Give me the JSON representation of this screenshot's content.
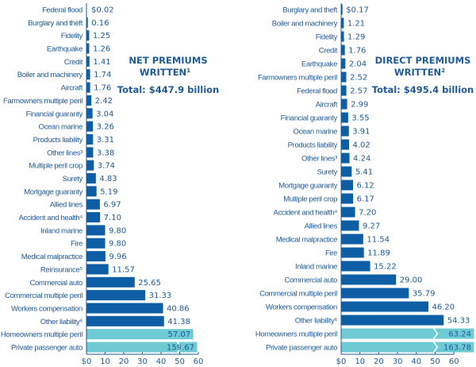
{
  "colors": {
    "bar_primary": "#0d5ea5",
    "bar_highlight": "#6ecbd3",
    "text": "#1f5a99",
    "axis": "#1f5a99"
  },
  "chart_data": [
    {
      "type": "bar",
      "orientation": "horizontal",
      "title": "NET PREMIUMS WRITTEN",
      "title_line1": "NET PREMIUMS",
      "title_line2": "WRITTEN",
      "title_footnote": "1",
      "total_label": "Total: $447.9 billion",
      "xlabel": "",
      "ylabel": "",
      "xlim": [
        0,
        60
      ],
      "x_ticks": [
        "$0",
        "10",
        "20",
        "30",
        "40",
        "50",
        "60"
      ],
      "x_tick_values": [
        0,
        10,
        20,
        30,
        40,
        50,
        60
      ],
      "grid": false,
      "unit": "$ billions",
      "categories": [
        "Federal flood",
        "Burglary and theft",
        "Fidelity",
        "Earthquake",
        "Credit",
        "Boiler and machinery",
        "Aircraft",
        "Farmowners multiple peril",
        "Financial guaranty",
        "Ocean marine",
        "Products liability",
        "Other lines³",
        "Multiple peril crop",
        "Surety",
        "Mortgage guaranty",
        "Allied lines",
        "Accident and health⁴",
        "Inland marine",
        "Fire",
        "Medical malpractice",
        "Reinsurance⁵",
        "Commercial auto",
        "Commercial multiple peril",
        "Workers compensation",
        "Other liability⁶",
        "Homeowners multiple peril",
        "Private passenger auto"
      ],
      "values": [
        0.02,
        0.16,
        1.25,
        1.26,
        1.41,
        1.74,
        1.76,
        2.42,
        3.04,
        3.26,
        3.31,
        3.38,
        3.74,
        4.83,
        5.19,
        6.97,
        7.1,
        9.8,
        9.8,
        9.96,
        11.57,
        25.65,
        31.33,
        40.86,
        41.38,
        57.07,
        159.67
      ],
      "value_labels": [
        "$0.02",
        "0.16",
        "1.25",
        "1.26",
        "1.41",
        "1.74",
        "1.76",
        "2.42",
        "3.04",
        "3.26",
        "3.31",
        "3.38",
        "3.74",
        "4.83",
        "5.19",
        "6.97",
        "7.10",
        "9.80",
        "9.80",
        "9.96",
        "11.57",
        "25.65",
        "31.33",
        "40.86",
        "41.38",
        "57.07",
        "159.67"
      ],
      "highlighted": [
        "Homeowners multiple peril",
        "Private passenger auto"
      ],
      "truncated": [
        "Private passenger auto"
      ]
    },
    {
      "type": "bar",
      "orientation": "horizontal",
      "title": "DIRECT PREMIUMS WRITTEN",
      "title_line1": "DIRECT PREMIUMS",
      "title_line2": "WRITTEN",
      "title_footnote": "2",
      "total_label": "Total: $495.4 billion",
      "xlabel": "",
      "ylabel": "",
      "xlim": [
        0,
        60
      ],
      "x_ticks": [
        "$0",
        "10",
        "20",
        "30",
        "40",
        "50",
        "60"
      ],
      "x_tick_values": [
        0,
        10,
        20,
        30,
        40,
        50,
        60
      ],
      "grid": false,
      "unit": "$ billions",
      "categories": [
        "Burglary and theft",
        "Boiler and machinery",
        "Fidelity",
        "Credit",
        "Earthquake",
        "Farmowners multiple peril",
        "Federal flood",
        "Aircraft",
        "Financial guaranty",
        "Ocean marine",
        "Products liability",
        "Other lines³",
        "Surety",
        "Mortgage guaranty",
        "Multiple peril crop",
        "Accident and health⁴",
        "Allied lines",
        "Medical malpractice",
        "Fire",
        "Inland marine",
        "Commercial auto",
        "Commercial multiple peril",
        "Workers compensation",
        "Other liability⁶",
        "Homeowners multiple peril",
        "Private passenger auto"
      ],
      "values": [
        0.17,
        1.21,
        1.29,
        1.76,
        2.04,
        2.52,
        2.57,
        2.99,
        3.55,
        3.91,
        4.02,
        4.24,
        5.41,
        6.12,
        6.17,
        7.2,
        9.27,
        11.54,
        11.89,
        15.22,
        29.0,
        35.79,
        46.2,
        54.33,
        63.24,
        163.78
      ],
      "value_labels": [
        "$0.17",
        "1.21",
        "1.29",
        "1.76",
        "2.04",
        "2.52",
        "2.57",
        "2.99",
        "3.55",
        "3.91",
        "4.02",
        "4.24",
        "5.41",
        "6.12",
        "6.17",
        "7.20",
        "9.27",
        "11.54",
        "11.89",
        "15.22",
        "29.00",
        "35.79",
        "46.20",
        "54.33",
        "63.24",
        "163.78"
      ],
      "highlighted": [
        "Homeowners multiple peril",
        "Private passenger auto"
      ],
      "truncated": [
        "Homeowners multiple peril",
        "Private passenger auto"
      ]
    }
  ]
}
